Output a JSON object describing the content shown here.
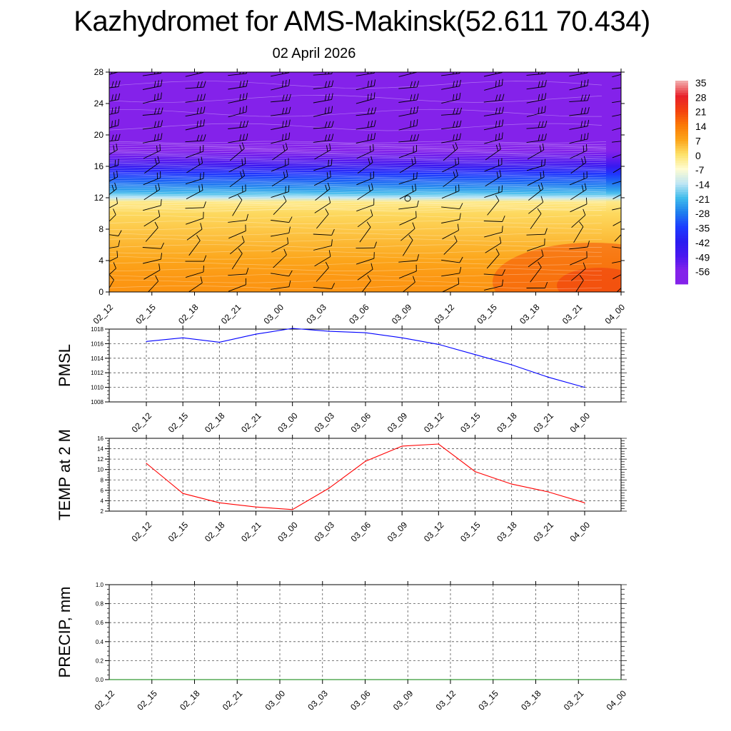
{
  "title": "Kazhydromet for AMS-Makinsk(52.611 70.434)",
  "subtitle": "02 April 2026",
  "chart_data": [
    {
      "type": "heatmap",
      "name": "temperature-wind-profile",
      "categories": [
        "02_12",
        "02_15",
        "02_18",
        "02_21",
        "03_00",
        "03_03",
        "03_06",
        "03_09",
        "03_12",
        "03_15",
        "03_18",
        "03_21",
        "04_00"
      ],
      "ylim": [
        0,
        28
      ],
      "yticks": [
        0,
        4,
        8,
        12,
        16,
        20,
        24,
        28
      ],
      "colorbar_labels": [
        "35",
        "28",
        "21",
        "14",
        "7",
        "0",
        "-7",
        "-14",
        "-21",
        "-28",
        "-35",
        "-42",
        "-49",
        "-56"
      ],
      "profile_levels": [
        0,
        2,
        4,
        6,
        8,
        10,
        11.5,
        12,
        12.5,
        13,
        14,
        15,
        16,
        17,
        18,
        19,
        20,
        24,
        28
      ],
      "profile_temps": [
        10,
        9,
        7,
        5,
        3,
        1,
        -2,
        -14,
        -20,
        -24,
        -30,
        -36,
        -45,
        -52,
        -58,
        -57,
        -58,
        -60,
        -59
      ],
      "colors": {
        "c35": "#f2a8a8",
        "c28": "#e8202a",
        "c21": "#f4420e",
        "c14": "#fb7a06",
        "c7": "#fca51a",
        "c0": "#fde26a",
        "c_7": "#fffcd2",
        "c_14": "#bfe6f4",
        "c_21": "#3fbcec",
        "c_28": "#1e7eee",
        "c_35": "#1d3cff",
        "c_42": "#2a1cf0",
        "c_49": "#4a16f0",
        "c_56": "#8422ea"
      }
    },
    {
      "type": "line",
      "name": "pmsl",
      "ylabel": "PMSL",
      "categories": [
        "02_12",
        "02_15",
        "02_18",
        "02_21",
        "03_00",
        "03_03",
        "03_06",
        "03_09",
        "03_12",
        "03_15",
        "03_18",
        "03_21",
        "04_00"
      ],
      "values": [
        1016.3,
        1016.8,
        1016.2,
        1017.3,
        1018.1,
        1017.7,
        1017.5,
        1016.8,
        1015.9,
        1014.5,
        1013.1,
        1011.4,
        1010.0
      ],
      "ylim": [
        1008,
        1018
      ],
      "yticks": [
        1008,
        1010,
        1012,
        1014,
        1016,
        1018
      ],
      "color": "#0000ff"
    },
    {
      "type": "line",
      "name": "temp-2m",
      "ylabel": "TEMP at 2 M",
      "categories": [
        "02_12",
        "02_15",
        "02_18",
        "02_21",
        "03_00",
        "03_03",
        "03_06",
        "03_09",
        "03_12",
        "03_15",
        "03_18",
        "03_21",
        "04_00"
      ],
      "values": [
        11.2,
        5.4,
        3.6,
        2.8,
        2.3,
        6.4,
        11.6,
        14.5,
        14.9,
        9.6,
        7.2,
        5.7,
        3.6
      ],
      "ylim": [
        2,
        16
      ],
      "yticks": [
        2,
        4,
        6,
        8,
        10,
        12,
        14,
        16
      ],
      "color": "#ff0000"
    },
    {
      "type": "line",
      "name": "precip",
      "ylabel": "PRECIP, mm",
      "categories": [
        "02_12",
        "02_15",
        "02_18",
        "02_21",
        "03_00",
        "03_03",
        "03_06",
        "03_09",
        "03_12",
        "03_15",
        "03_18",
        "03_21",
        "04_00"
      ],
      "values": [
        0,
        0,
        0,
        0,
        0,
        0,
        0,
        0,
        0,
        0,
        0,
        0,
        0
      ],
      "ylim": [
        0,
        1
      ],
      "yticks": [
        "0.0",
        "0.2",
        "0.4",
        "0.6",
        "0.8",
        "1.0"
      ],
      "color": "#008000"
    }
  ]
}
